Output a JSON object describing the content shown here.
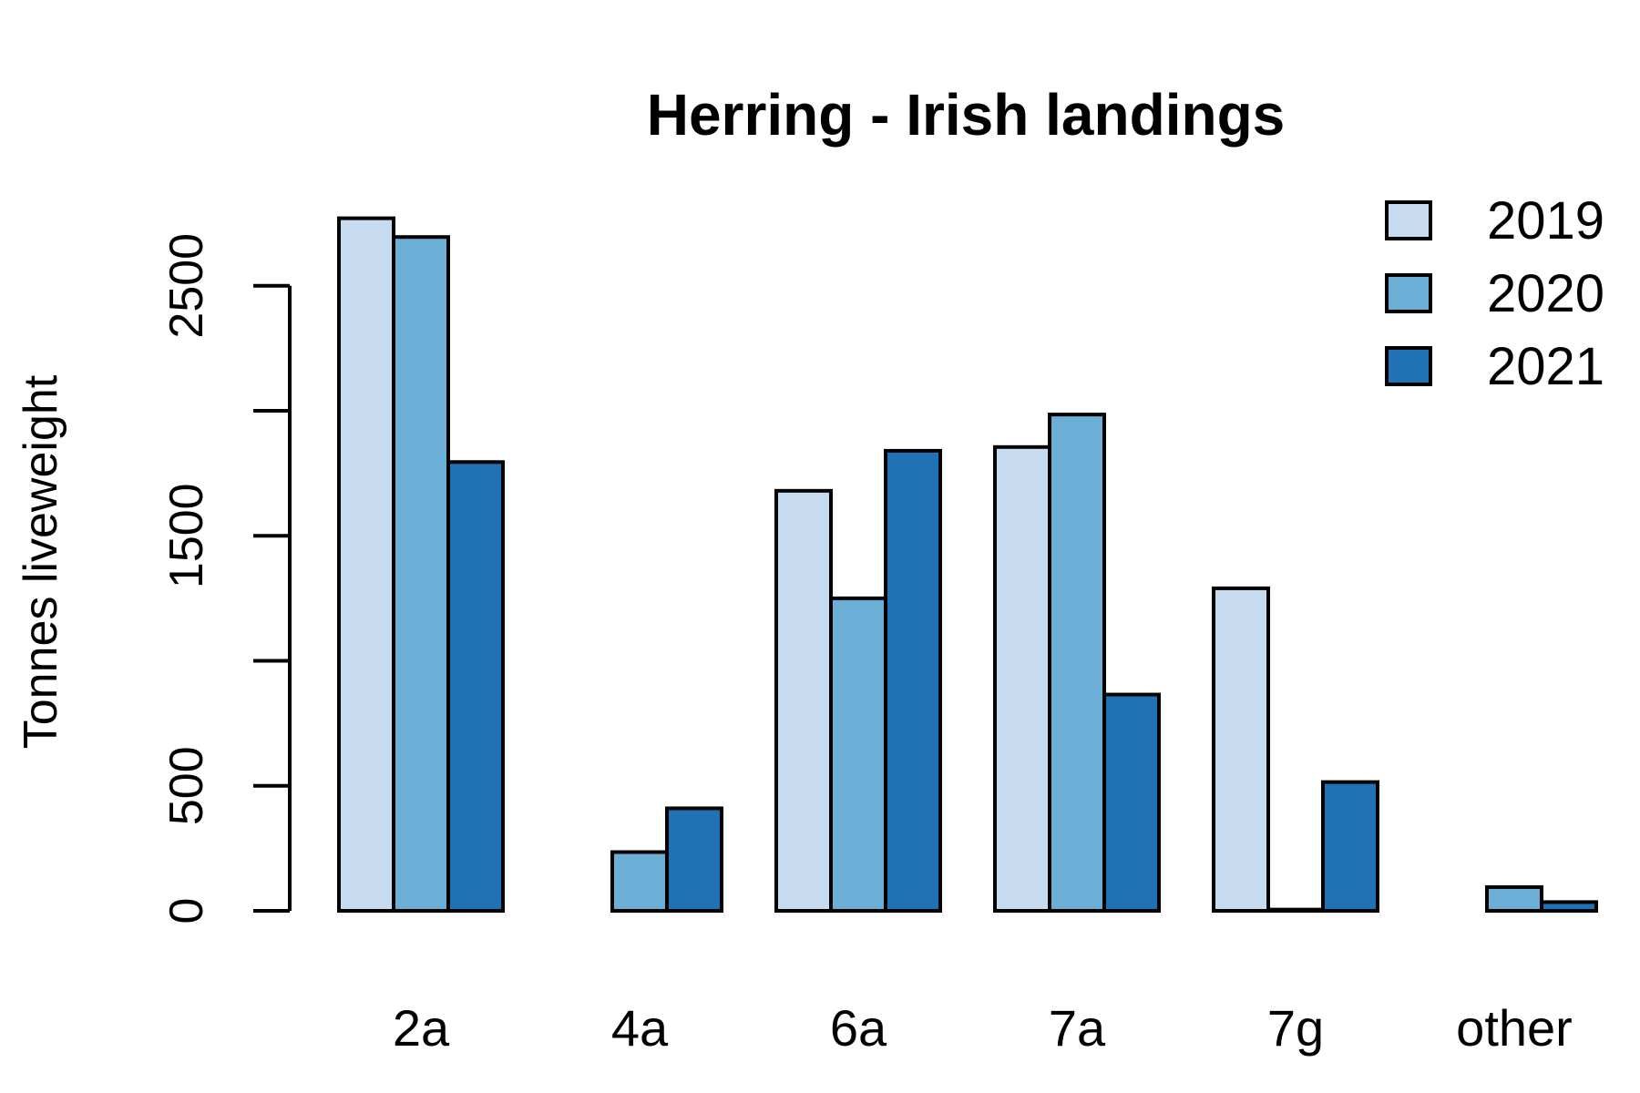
{
  "chart_data": {
    "type": "bar",
    "title": "Herring - Irish landings",
    "xlabel": "",
    "ylabel": "Tonnes liveweight",
    "categories": [
      "2a",
      "4a",
      "6a",
      "7a",
      "7g",
      "other"
    ],
    "series": [
      {
        "name": "2019",
        "color": "#c6dbef",
        "values": [
          2770,
          0,
          1680,
          1855,
          1290,
          0
        ]
      },
      {
        "name": "2020",
        "color": "#6baed6",
        "values": [
          2695,
          235,
          1250,
          1985,
          5,
          95
        ]
      },
      {
        "name": "2021",
        "color": "#2171b5",
        "values": [
          1795,
          410,
          1840,
          865,
          515,
          35
        ]
      }
    ],
    "y_ticks": [
      0,
      500,
      1500,
      2500
    ],
    "y_minor_ticks": [
      1000,
      2000
    ],
    "ylim": [
      0,
      2900
    ],
    "grid": false,
    "legend_position": "top-right"
  }
}
